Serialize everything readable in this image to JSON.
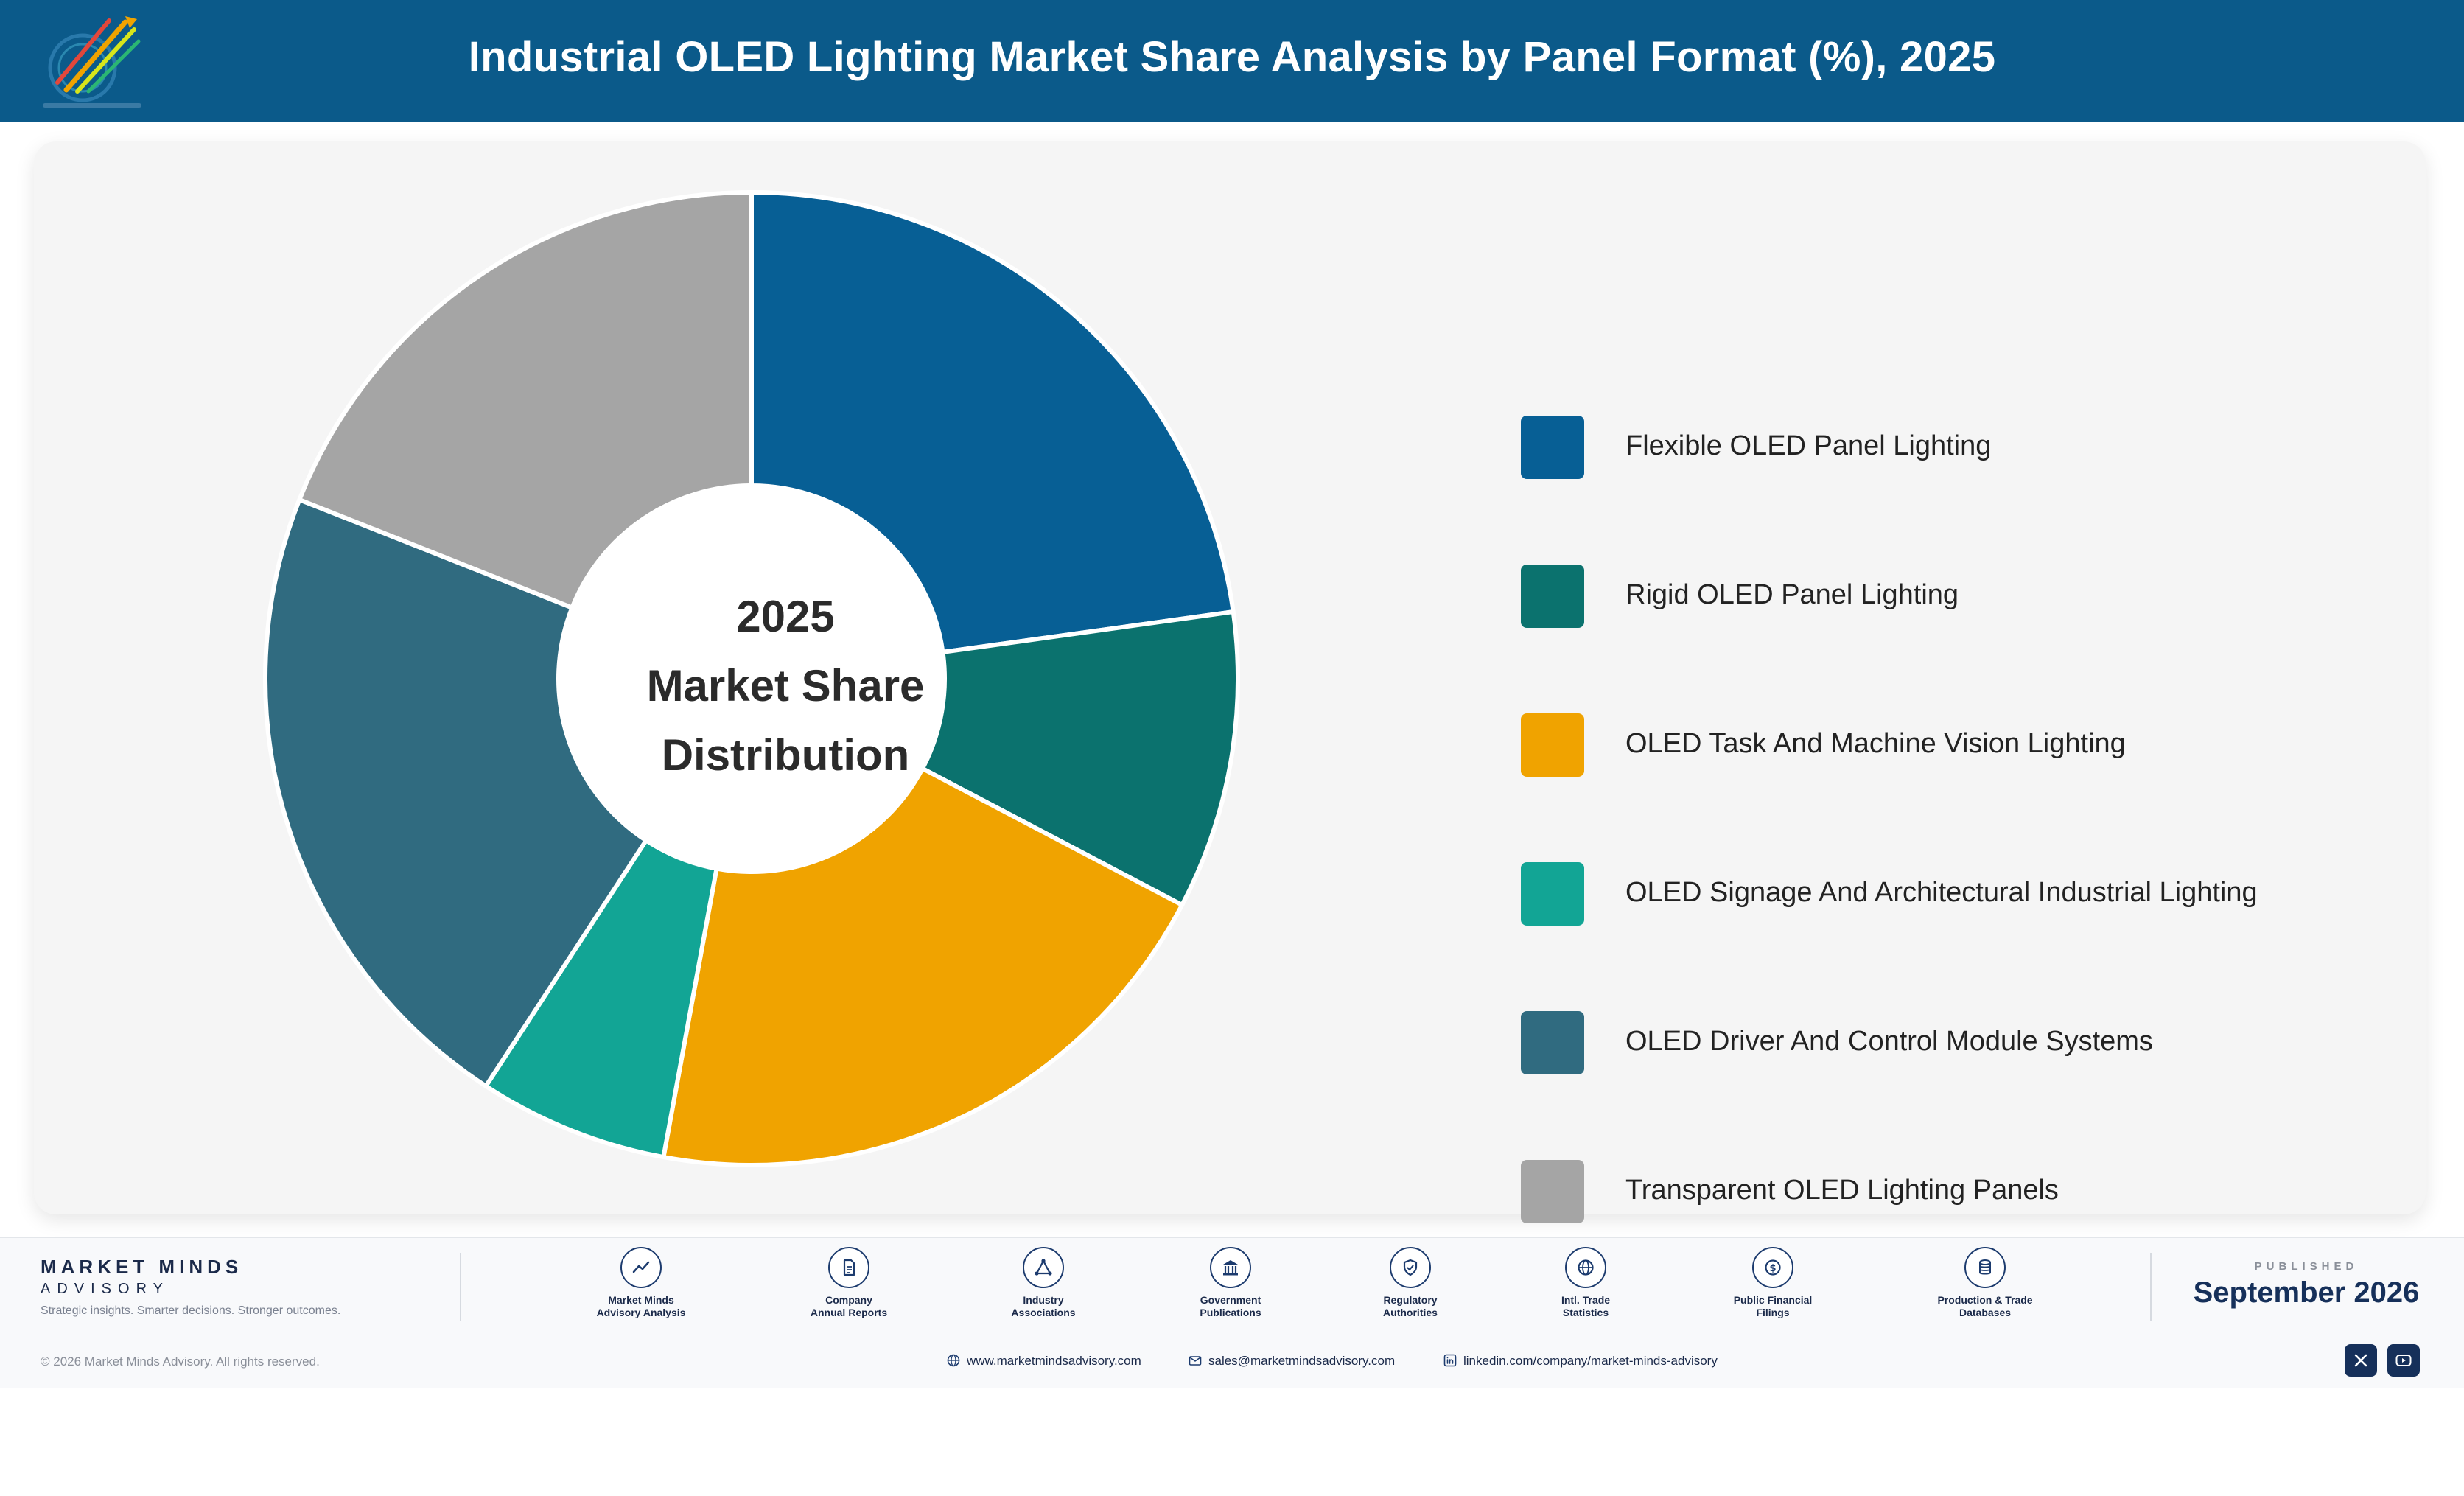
{
  "header": {
    "title": "Industrial OLED Lighting Market Share Analysis by Panel Format (%), 2025"
  },
  "colors": {
    "header_bg": "#0b5a8a",
    "slice_border": "#ffffff"
  },
  "chart_data": {
    "type": "pie",
    "variant": "donut",
    "title": "Industrial OLED Lighting Market Share Analysis by Panel Format (%), 2025",
    "center_text": [
      "2025",
      "Market Share",
      "Distribution"
    ],
    "legend_position": "right",
    "categories": [
      "Flexible OLED Panel Lighting",
      "Rigid OLED Panel Lighting",
      "OLED Task And Machine Vision Lighting",
      "OLED Signage And Architectural Industrial Lighting",
      "OLED Driver And Control Module Systems",
      "Transparent OLED Lighting Panels"
    ],
    "values": [
      22.8,
      9.9,
      20.2,
      6.3,
      21.8,
      19.0
    ],
    "colors": [
      "#075f95",
      "#0b726e",
      "#f0a300",
      "#12a595",
      "#306b80",
      "#a5a5a5"
    ]
  },
  "footer": {
    "brand_name": "MARKET MINDS",
    "brand_sub": "ADVISORY",
    "tagline": "Strategic insights. Smarter decisions. Stronger outcomes.",
    "sources": [
      {
        "line1": "Market Minds",
        "line2": "Advisory Analysis",
        "icon": "trend-icon"
      },
      {
        "line1": "Company",
        "line2": "Annual Reports",
        "icon": "document-icon"
      },
      {
        "line1": "Industry",
        "line2": "Associations",
        "icon": "network-icon"
      },
      {
        "line1": "Government",
        "line2": "Publications",
        "icon": "building-icon"
      },
      {
        "line1": "Regulatory",
        "line2": "Authorities",
        "icon": "shield-icon"
      },
      {
        "line1": "Intl. Trade",
        "line2": "Statistics",
        "icon": "globe-icon"
      },
      {
        "line1": "Public Financial",
        "line2": "Filings",
        "icon": "coin-icon"
      },
      {
        "line1": "Production & Trade",
        "line2": "Databases",
        "icon": "database-icon"
      }
    ],
    "published_label": "PUBLISHED",
    "published_date": "September 2026",
    "copyright": "© 2026 Market Minds Advisory. All rights reserved.",
    "website": "www.marketmindsadvisory.com",
    "email": "sales@marketmindsadvisory.com",
    "linkedin": "linkedin.com/company/market-minds-advisory",
    "social": [
      "x-icon",
      "youtube-icon"
    ]
  }
}
